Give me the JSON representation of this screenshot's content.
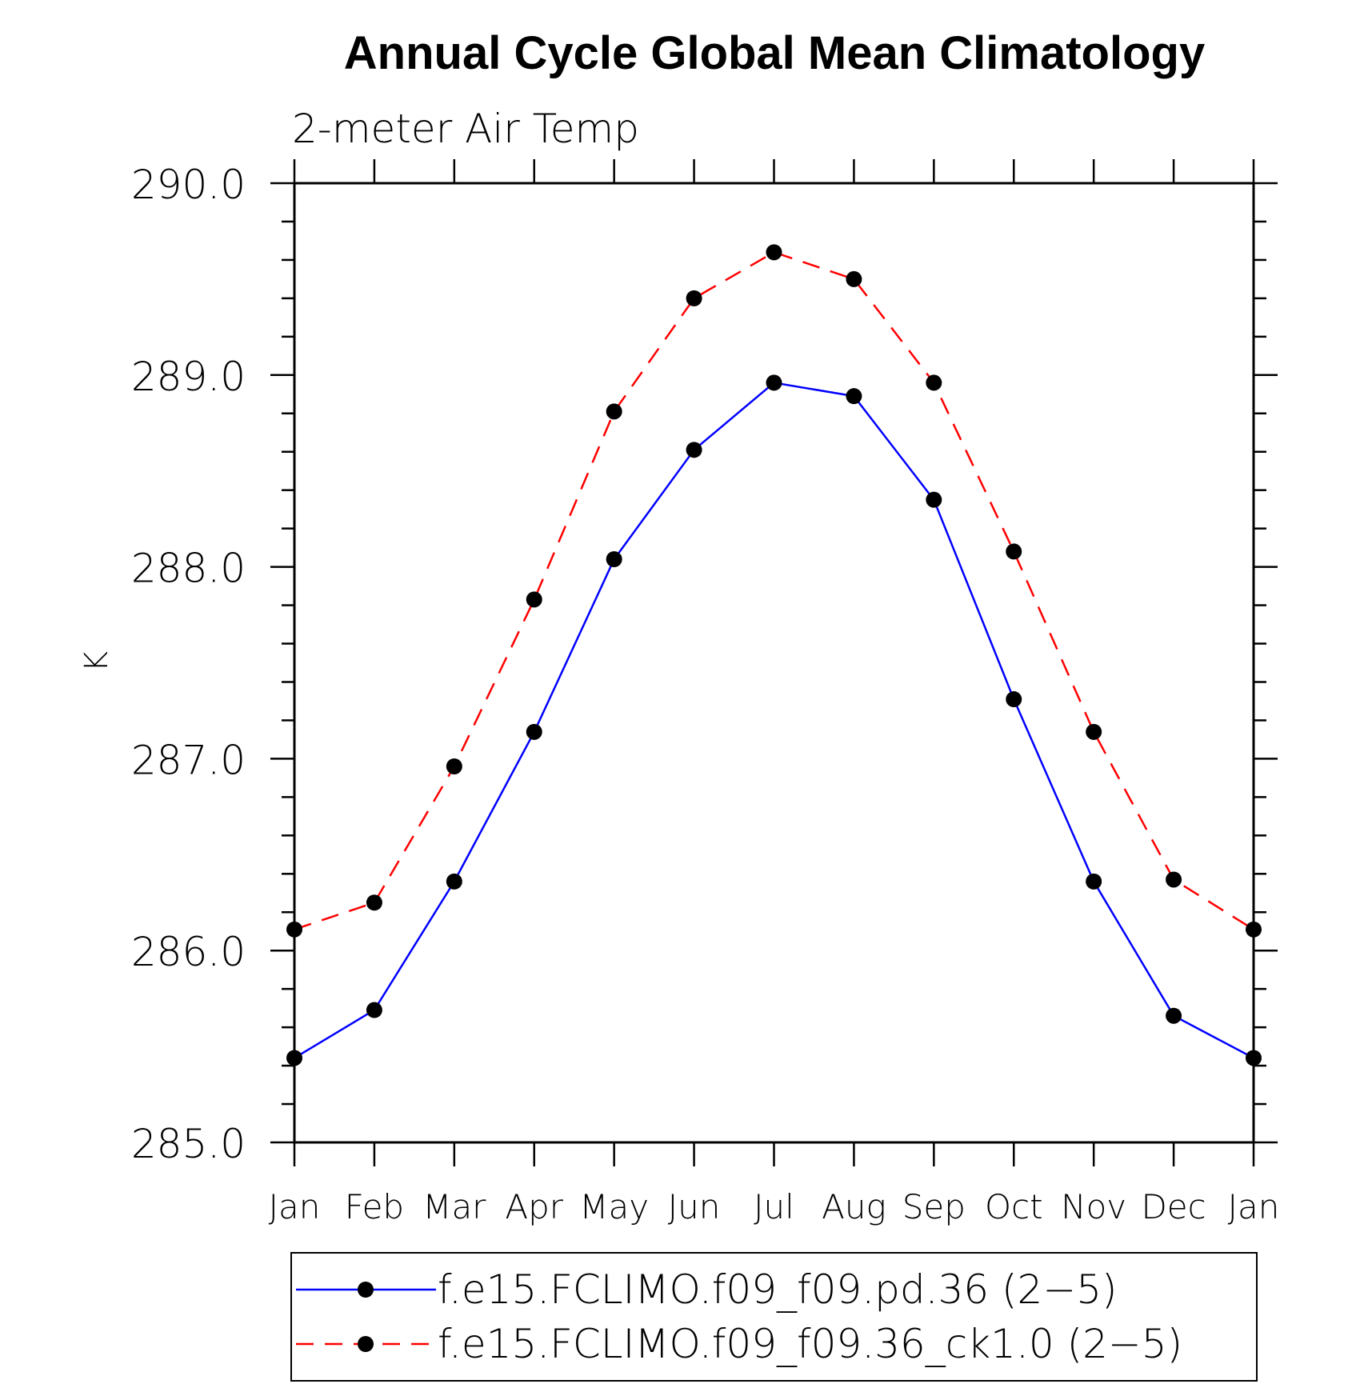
{
  "chart_data": {
    "type": "line",
    "title": "Annual Cycle Global Mean Climatology",
    "subtitle": "2-meter Air Temp",
    "xlabel": "",
    "ylabel": "K",
    "categories": [
      "Jan",
      "Feb",
      "Mar",
      "Apr",
      "May",
      "Jun",
      "Jul",
      "Aug",
      "Sep",
      "Oct",
      "Nov",
      "Dec",
      "Jan"
    ],
    "ylim": [
      285.0,
      290.0
    ],
    "yticks": [
      "285.0",
      "286.0",
      "287.0",
      "288.0",
      "289.0",
      "290.0"
    ],
    "grid": false,
    "legend_position": "bottom",
    "series": [
      {
        "name": "f.e15.FCLIMO.f09_f09.pd.36 (2−5)",
        "color": "#0000ff",
        "line_style": "solid",
        "marker": "filled-circle",
        "values": [
          285.44,
          285.69,
          286.36,
          287.14,
          288.04,
          288.61,
          288.96,
          288.89,
          288.35,
          287.31,
          286.36,
          285.66,
          285.44
        ]
      },
      {
        "name": "f.e15.FCLIMO.f09_f09.36_ck1.0 (2−5)",
        "color": "#ff0000",
        "line_style": "dashed",
        "marker": "filled-circle",
        "values": [
          286.11,
          286.25,
          286.96,
          287.83,
          288.81,
          289.4,
          289.64,
          289.5,
          288.96,
          288.08,
          287.14,
          286.37,
          286.11
        ]
      }
    ]
  }
}
